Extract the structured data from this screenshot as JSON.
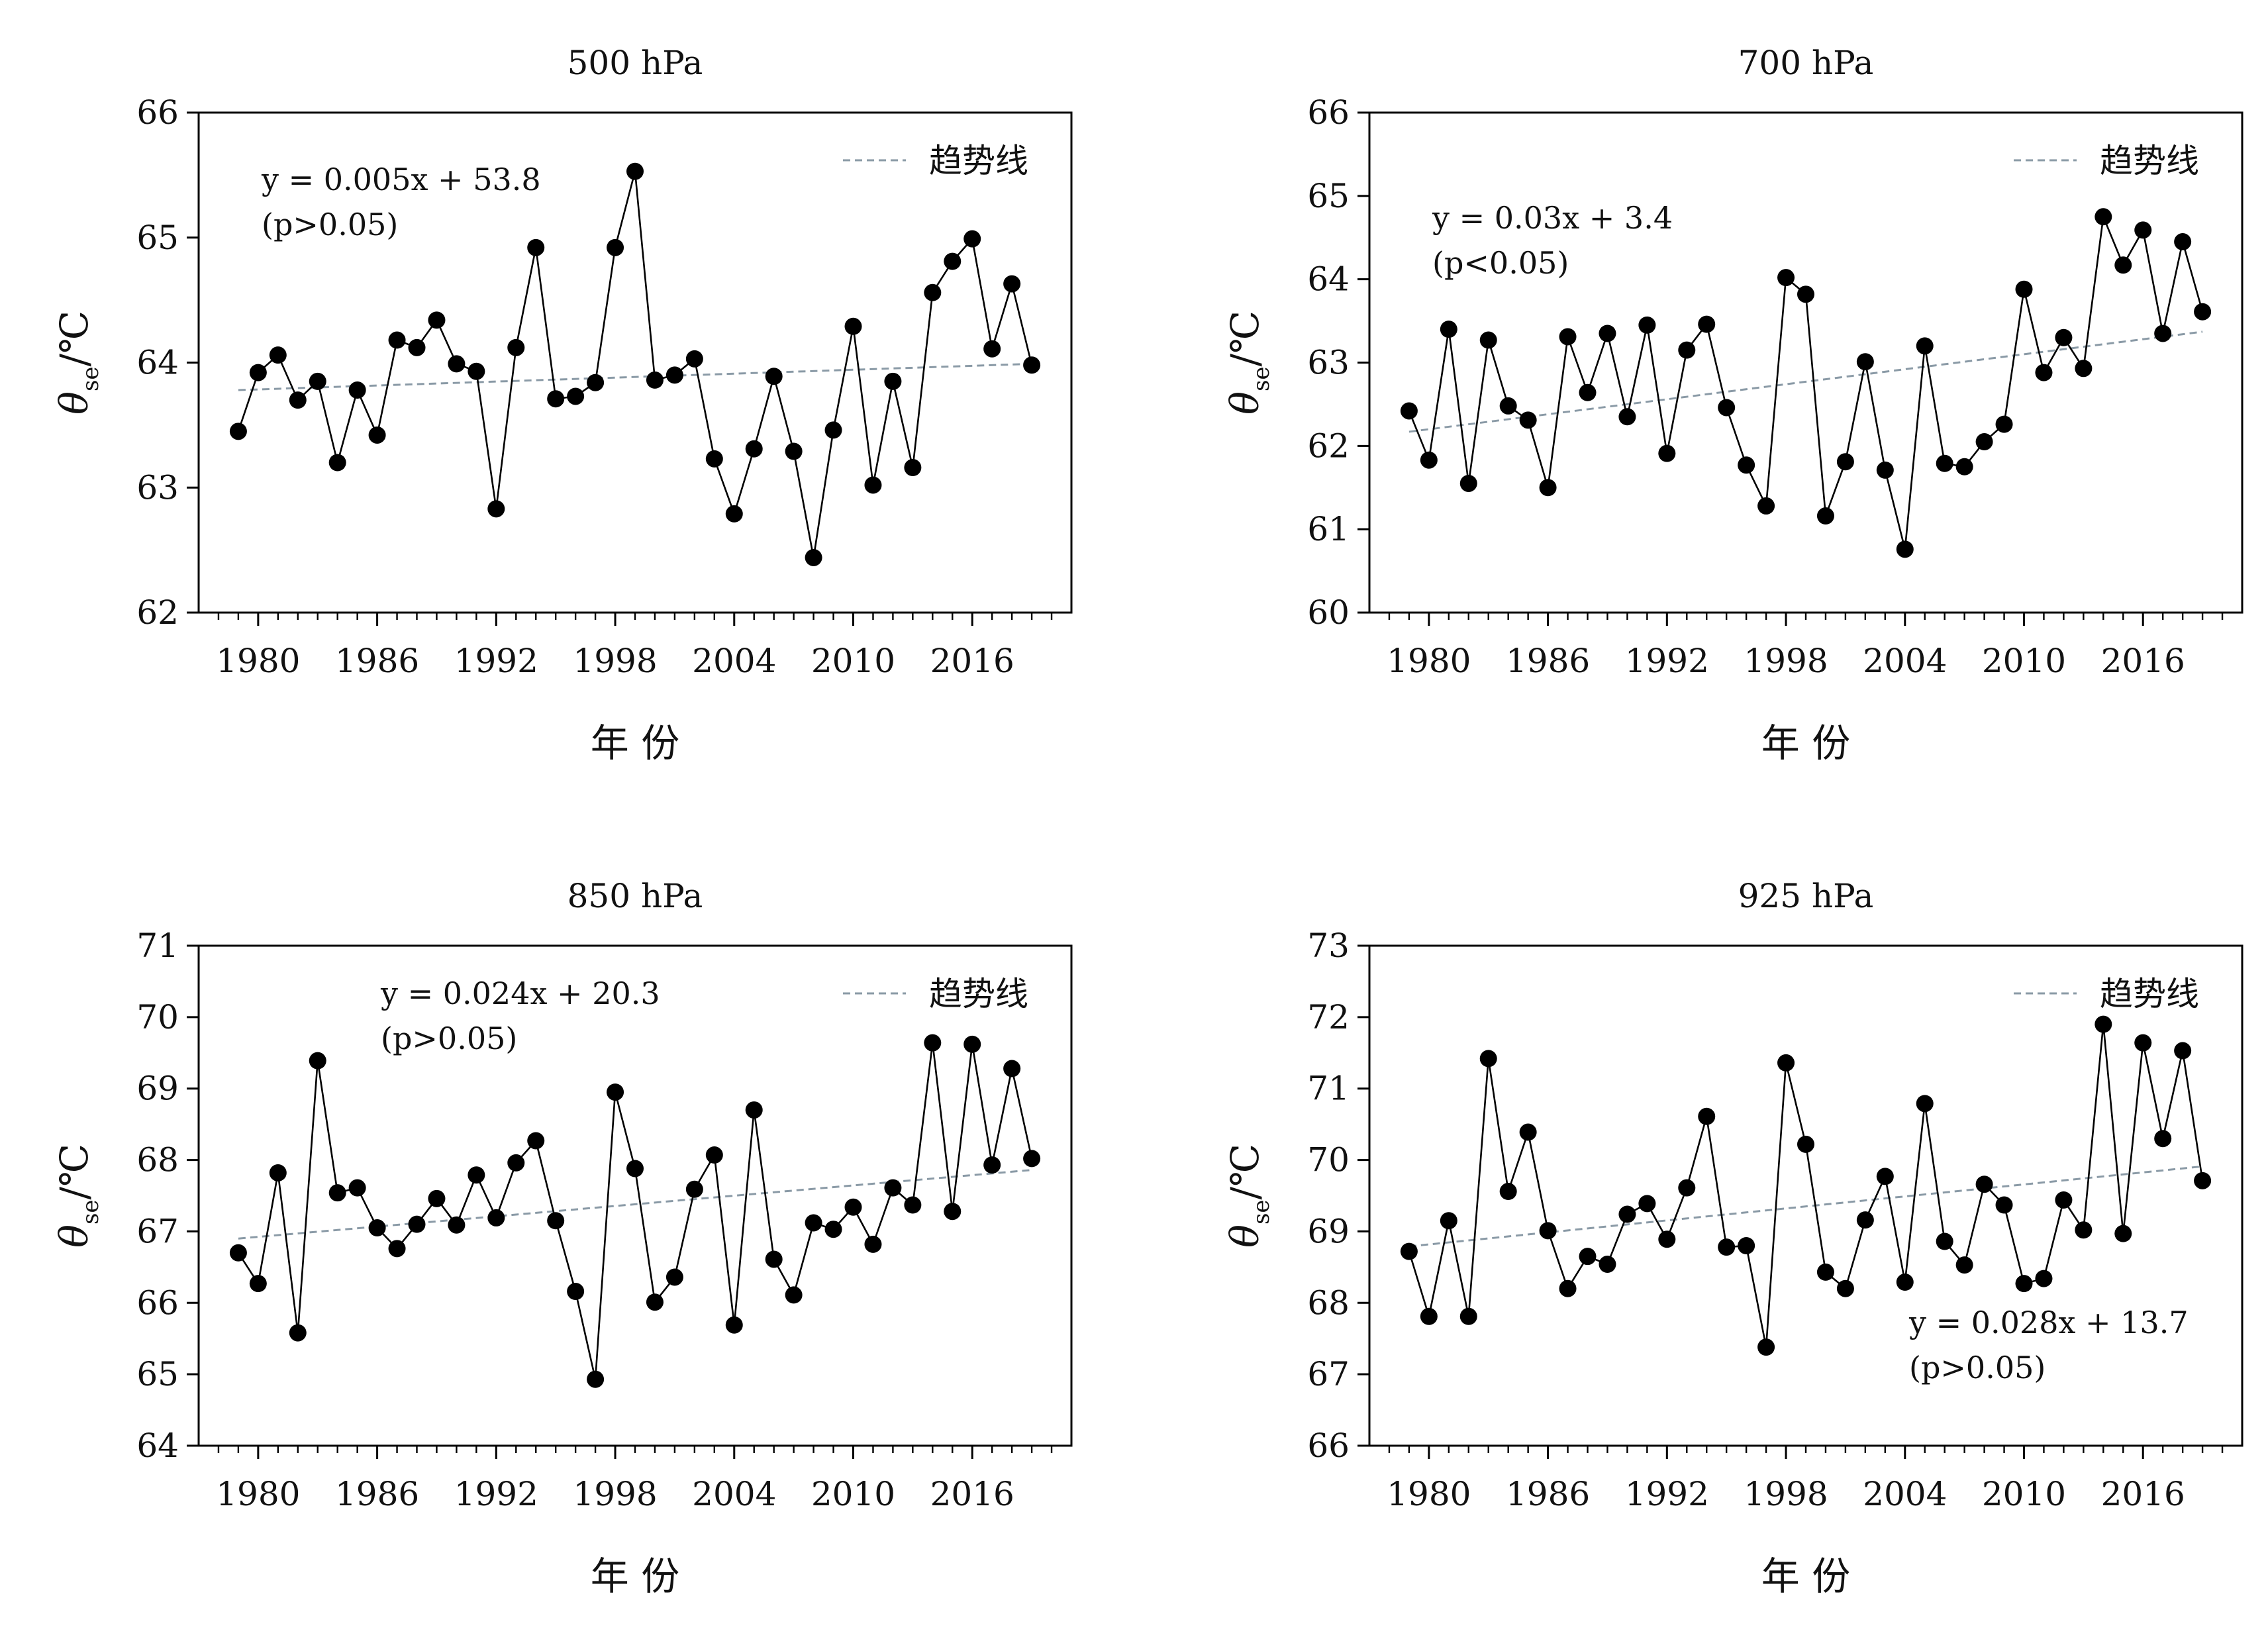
{
  "chart_data": [
    {
      "type": "line",
      "title": "500 hPa",
      "xlabel": "年 份",
      "ylabel": "θse/℃",
      "ylim": [
        62,
        66
      ],
      "yticks": [
        62,
        63,
        64,
        65,
        66
      ],
      "xlim": [
        1977,
        2021
      ],
      "xticks": [
        1980,
        1986,
        1992,
        1998,
        2004,
        2010,
        2016
      ],
      "legend": {
        "label": "趋势线",
        "position": "top-right"
      },
      "equation": "y = 0.005x + 53.8",
      "significance": "(p>0.05)",
      "equation_position": "top-left",
      "trend": [
        [
          1979,
          63.78
        ],
        [
          2019,
          63.99
        ]
      ],
      "x": [
        1979,
        1980,
        1981,
        1982,
        1983,
        1984,
        1985,
        1986,
        1987,
        1988,
        1989,
        1990,
        1991,
        1992,
        1993,
        1994,
        1995,
        1996,
        1997,
        1998,
        1999,
        2000,
        2001,
        2002,
        2003,
        2004,
        2005,
        2006,
        2007,
        2008,
        2009,
        2010,
        2011,
        2012,
        2013,
        2014,
        2015,
        2016,
        2017,
        2018,
        2019
      ],
      "series": [
        {
          "values": [
            63.45,
            63.92,
            64.06,
            63.7,
            63.85,
            63.2,
            63.78,
            63.42,
            64.18,
            64.12,
            64.34,
            63.99,
            63.93,
            62.83,
            64.12,
            64.92,
            63.71,
            63.73,
            63.84,
            64.92,
            65.53,
            63.86,
            63.9,
            64.03,
            63.23,
            62.79,
            63.31,
            63.89,
            63.29,
            62.44,
            63.46,
            64.29,
            63.02,
            63.85,
            63.16,
            64.56,
            64.81,
            64.99,
            64.11,
            64.63,
            63.98
          ]
        }
      ]
    },
    {
      "type": "line",
      "title": "700 hPa",
      "xlabel": "年 份",
      "ylabel": "θse/℃",
      "ylim": [
        60,
        66
      ],
      "yticks": [
        60,
        61,
        62,
        63,
        64,
        65,
        66
      ],
      "xlim": [
        1977,
        2021
      ],
      "xticks": [
        1980,
        1986,
        1992,
        1998,
        2004,
        2010,
        2016
      ],
      "legend": {
        "label": "趋势线",
        "position": "top-right"
      },
      "equation": "y = 0.03x + 3.4",
      "significance": "(p<0.05)",
      "equation_position": "top-left",
      "trend": [
        [
          1979,
          62.17
        ],
        [
          2019,
          63.37
        ]
      ],
      "x": [
        1979,
        1980,
        1981,
        1982,
        1983,
        1984,
        1985,
        1986,
        1987,
        1988,
        1989,
        1990,
        1991,
        1992,
        1993,
        1994,
        1995,
        1996,
        1997,
        1998,
        1999,
        2000,
        2001,
        2002,
        2003,
        2004,
        2005,
        2006,
        2007,
        2008,
        2009,
        2010,
        2011,
        2012,
        2013,
        2014,
        2015,
        2016,
        2017,
        2018,
        2019
      ],
      "series": [
        {
          "values": [
            62.42,
            61.83,
            63.4,
            61.55,
            63.27,
            62.48,
            62.31,
            61.5,
            63.31,
            62.64,
            63.35,
            62.35,
            63.45,
            61.91,
            63.15,
            63.46,
            62.46,
            61.77,
            61.28,
            64.02,
            63.82,
            61.16,
            61.81,
            63.01,
            61.71,
            60.76,
            63.2,
            61.79,
            61.75,
            62.05,
            62.26,
            63.88,
            62.88,
            63.3,
            62.93,
            64.75,
            64.17,
            64.59,
            63.35,
            64.45,
            63.61
          ]
        }
      ]
    },
    {
      "type": "line",
      "title": "850 hPa",
      "xlabel": "年 份",
      "ylabel": "θse/℃",
      "ylim": [
        64,
        71
      ],
      "yticks": [
        64,
        65,
        66,
        67,
        68,
        69,
        70,
        71
      ],
      "xlim": [
        1977,
        2021
      ],
      "xticks": [
        1980,
        1986,
        1992,
        1998,
        2004,
        2010,
        2016
      ],
      "legend": {
        "label": "趋势线",
        "position": "top-right"
      },
      "equation": "y = 0.024x + 20.3",
      "significance": "(p>0.05)",
      "equation_position": "top-left",
      "trend": [
        [
          1979,
          66.9
        ],
        [
          2019,
          67.86
        ]
      ],
      "x": [
        1979,
        1980,
        1981,
        1982,
        1983,
        1984,
        1985,
        1986,
        1987,
        1988,
        1989,
        1990,
        1991,
        1992,
        1993,
        1994,
        1995,
        1996,
        1997,
        1998,
        1999,
        2000,
        2001,
        2002,
        2003,
        2004,
        2005,
        2006,
        2007,
        2008,
        2009,
        2010,
        2011,
        2012,
        2013,
        2014,
        2015,
        2016,
        2017,
        2018,
        2019
      ],
      "series": [
        {
          "values": [
            66.7,
            66.27,
            67.82,
            65.58,
            69.39,
            67.54,
            67.61,
            67.05,
            66.76,
            67.1,
            67.46,
            67.09,
            67.79,
            67.19,
            67.96,
            68.27,
            67.15,
            66.16,
            64.93,
            68.95,
            67.88,
            66.01,
            66.36,
            67.59,
            68.07,
            65.69,
            68.7,
            66.61,
            66.11,
            67.12,
            67.03,
            67.34,
            66.82,
            67.61,
            67.37,
            69.64,
            67.28,
            69.62,
            67.93,
            69.28,
            68.02
          ]
        }
      ]
    },
    {
      "type": "line",
      "title": "925 hPa",
      "xlabel": "年 份",
      "ylabel": "θse/℃",
      "ylim": [
        66,
        73
      ],
      "yticks": [
        66,
        67,
        68,
        69,
        70,
        71,
        72,
        73
      ],
      "xlim": [
        1977,
        2021
      ],
      "xticks": [
        1980,
        1986,
        1992,
        1998,
        2004,
        2010,
        2016
      ],
      "legend": {
        "label": "趋势线",
        "position": "top-right"
      },
      "equation": "y = 0.028x + 13.7",
      "significance": "(p>0.05)",
      "equation_position": "bottom-right",
      "trend": [
        [
          1979,
          68.79
        ],
        [
          2019,
          69.91
        ]
      ],
      "x": [
        1979,
        1980,
        1981,
        1982,
        1983,
        1984,
        1985,
        1986,
        1987,
        1988,
        1989,
        1990,
        1991,
        1992,
        1993,
        1994,
        1995,
        1996,
        1997,
        1998,
        1999,
        2000,
        2001,
        2002,
        2003,
        2004,
        2005,
        2006,
        2007,
        2008,
        2009,
        2010,
        2011,
        2012,
        2013,
        2014,
        2015,
        2016,
        2017,
        2018,
        2019
      ],
      "series": [
        {
          "values": [
            68.72,
            67.81,
            69.15,
            67.81,
            71.42,
            69.56,
            70.39,
            69.01,
            68.2,
            68.65,
            68.54,
            69.24,
            69.39,
            68.89,
            69.61,
            70.61,
            68.78,
            68.8,
            67.38,
            71.36,
            70.22,
            68.43,
            68.2,
            69.16,
            69.77,
            68.29,
            70.79,
            68.86,
            68.53,
            69.66,
            69.37,
            68.27,
            68.34,
            69.44,
            69.02,
            71.9,
            68.97,
            71.64,
            70.3,
            71.53,
            69.71
          ]
        }
      ]
    }
  ],
  "colors": {
    "line": "#000000",
    "marker": "#000000",
    "trend": "#8a9aa6",
    "axis": "#000000"
  }
}
